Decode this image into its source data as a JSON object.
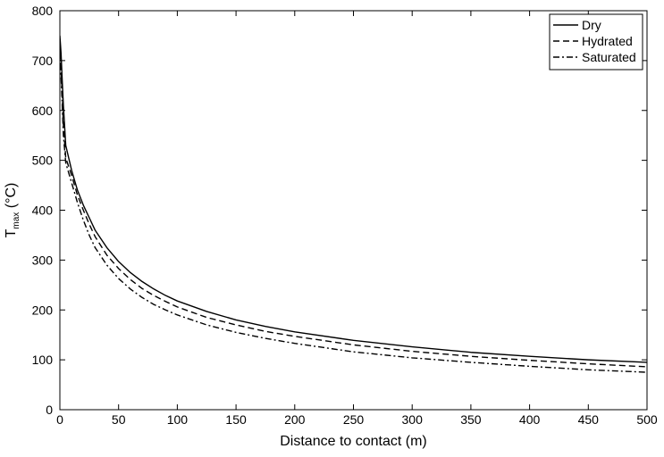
{
  "chart_data": {
    "type": "line",
    "title": "",
    "xlabel": "Distance to contact (m)",
    "ylabel": {
      "base": "T",
      "subscript": "max",
      "units": " (°C)"
    },
    "xlim": [
      0,
      500
    ],
    "ylim": [
      0,
      800
    ],
    "xticks": [
      0,
      50,
      100,
      150,
      200,
      250,
      300,
      350,
      400,
      450,
      500
    ],
    "yticks": [
      0,
      100,
      200,
      300,
      400,
      500,
      600,
      700,
      800
    ],
    "grid": false,
    "legend_position": "top-right",
    "series": [
      {
        "name": "Dry",
        "line_style": "solid",
        "color": "#000000",
        "x": [
          0,
          1,
          2,
          3,
          5,
          10,
          15,
          20,
          25,
          30,
          40,
          50,
          60,
          70,
          80,
          90,
          100,
          125,
          150,
          175,
          200,
          250,
          300,
          350,
          400,
          450,
          500
        ],
        "y": [
          750,
          715,
          660,
          610,
          530,
          480,
          440,
          410,
          385,
          360,
          325,
          297,
          275,
          257,
          242,
          229,
          218,
          197,
          180,
          167,
          156,
          139,
          126,
          115,
          107,
          100,
          95
        ]
      },
      {
        "name": "Hydrated",
        "line_style": "dashed",
        "color": "#000000",
        "x": [
          0,
          1,
          2,
          3,
          5,
          10,
          15,
          20,
          25,
          30,
          40,
          50,
          60,
          70,
          80,
          90,
          100,
          125,
          150,
          175,
          200,
          250,
          300,
          350,
          400,
          450,
          500
        ],
        "y": [
          735,
          690,
          630,
          570,
          505,
          470,
          430,
          400,
          372,
          347,
          310,
          283,
          261,
          243,
          229,
          217,
          206,
          185,
          170,
          157,
          147,
          130,
          117,
          107,
          99,
          92,
          86
        ]
      },
      {
        "name": "Saturated",
        "line_style": "dashdot",
        "color": "#000000",
        "x": [
          0,
          1,
          2,
          3,
          5,
          10,
          15,
          20,
          25,
          30,
          40,
          50,
          60,
          70,
          80,
          90,
          100,
          125,
          150,
          175,
          200,
          250,
          300,
          350,
          400,
          450,
          500
        ],
        "y": [
          720,
          670,
          610,
          550,
          495,
          455,
          415,
          380,
          350,
          325,
          290,
          263,
          242,
          225,
          211,
          200,
          190,
          170,
          155,
          143,
          133,
          116,
          104,
          95,
          87,
          80,
          75
        ]
      }
    ]
  }
}
